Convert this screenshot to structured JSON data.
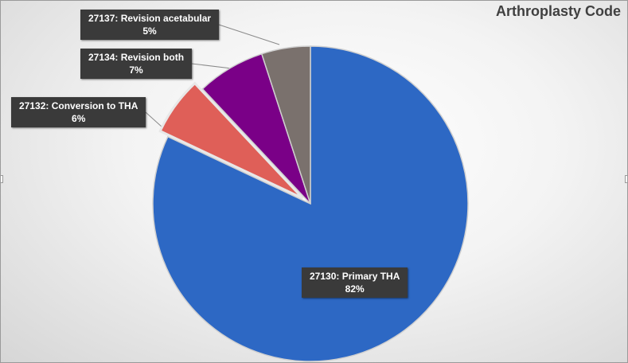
{
  "chart_data": {
    "type": "pie",
    "title": "Arthroplasty Code",
    "slices": [
      {
        "label": "27130: Primary THA",
        "value": 82,
        "value_label": "82%",
        "color": "#2d68c4",
        "exploded": false
      },
      {
        "label": "27132: Conversion to THA",
        "value": 6,
        "value_label": "6%",
        "color": "#df5f58",
        "exploded": true
      },
      {
        "label": "27134: Revision both",
        "value": 7,
        "value_label": "7%",
        "color": "#7a0087",
        "exploded": false
      },
      {
        "label": "27137: Revision acetabular",
        "value": 5,
        "value_label": "5%",
        "color": "#7a716d",
        "exploded": false
      }
    ],
    "label_style": {
      "background": "#3a3a3a",
      "text_color": "#ffffff"
    }
  }
}
